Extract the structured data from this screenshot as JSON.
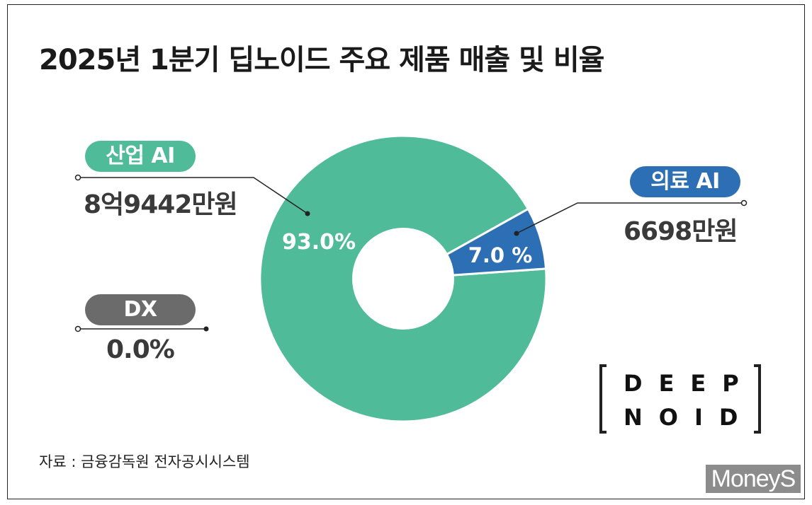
{
  "title": "2025년 1분기 딥노이드 주요 제품 매출 및 비율",
  "source": "자료 : 금융감독원 전자공시시스템",
  "logo": {
    "row1": "DEEP",
    "row2": "NOID"
  },
  "brand": "MoneyS",
  "colors": {
    "industrial": "#4fbb99",
    "medical": "#2d6fb4",
    "dx": "#6b6b6b"
  },
  "chart_data": {
    "type": "pie",
    "donut": true,
    "slices": [
      {
        "name": "산업 AI",
        "percent": 93.0,
        "percent_label": "93.0%",
        "amount": "8억9442만원"
      },
      {
        "name": "의료 AI",
        "percent": 7.0,
        "percent_label": "7.0 %",
        "amount": "6698만원"
      },
      {
        "name": "DX",
        "percent": 0.0,
        "percent_label": "0.0%"
      }
    ]
  }
}
